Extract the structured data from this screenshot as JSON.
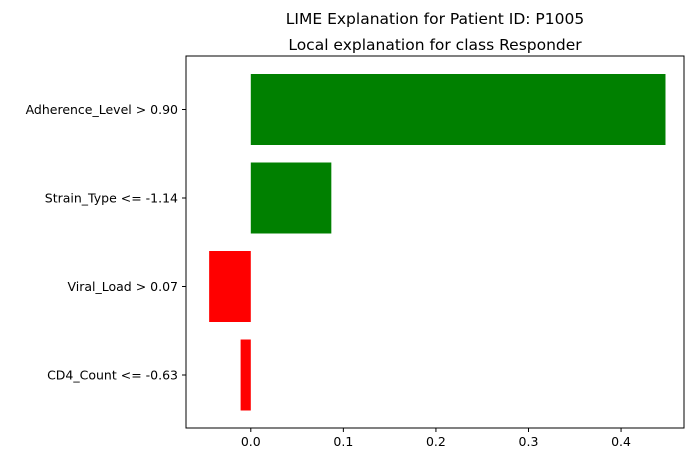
{
  "chart_data": {
    "type": "bar",
    "orientation": "horizontal",
    "suptitle": "LIME Explanation for Patient ID: P1005",
    "title": "Local explanation for class Responder",
    "xlabel": "",
    "ylabel": "",
    "categories": [
      "Adherence_Level > 0.90",
      "Strain_Type <= -1.14",
      "Viral_Load > 0.07",
      "CD4_Count <= -0.63"
    ],
    "values": [
      0.448,
      0.087,
      -0.045,
      -0.011
    ],
    "bar_colors": [
      "#008000",
      "#008000",
      "#ff0000",
      "#ff0000"
    ],
    "xlim": [
      -0.07,
      0.468
    ],
    "xticks": [
      0.0,
      0.1,
      0.2,
      0.3,
      0.4
    ],
    "xtick_labels": [
      "0.0",
      "0.1",
      "0.2",
      "0.3",
      "0.4"
    ],
    "grid": false,
    "legend": "none"
  }
}
